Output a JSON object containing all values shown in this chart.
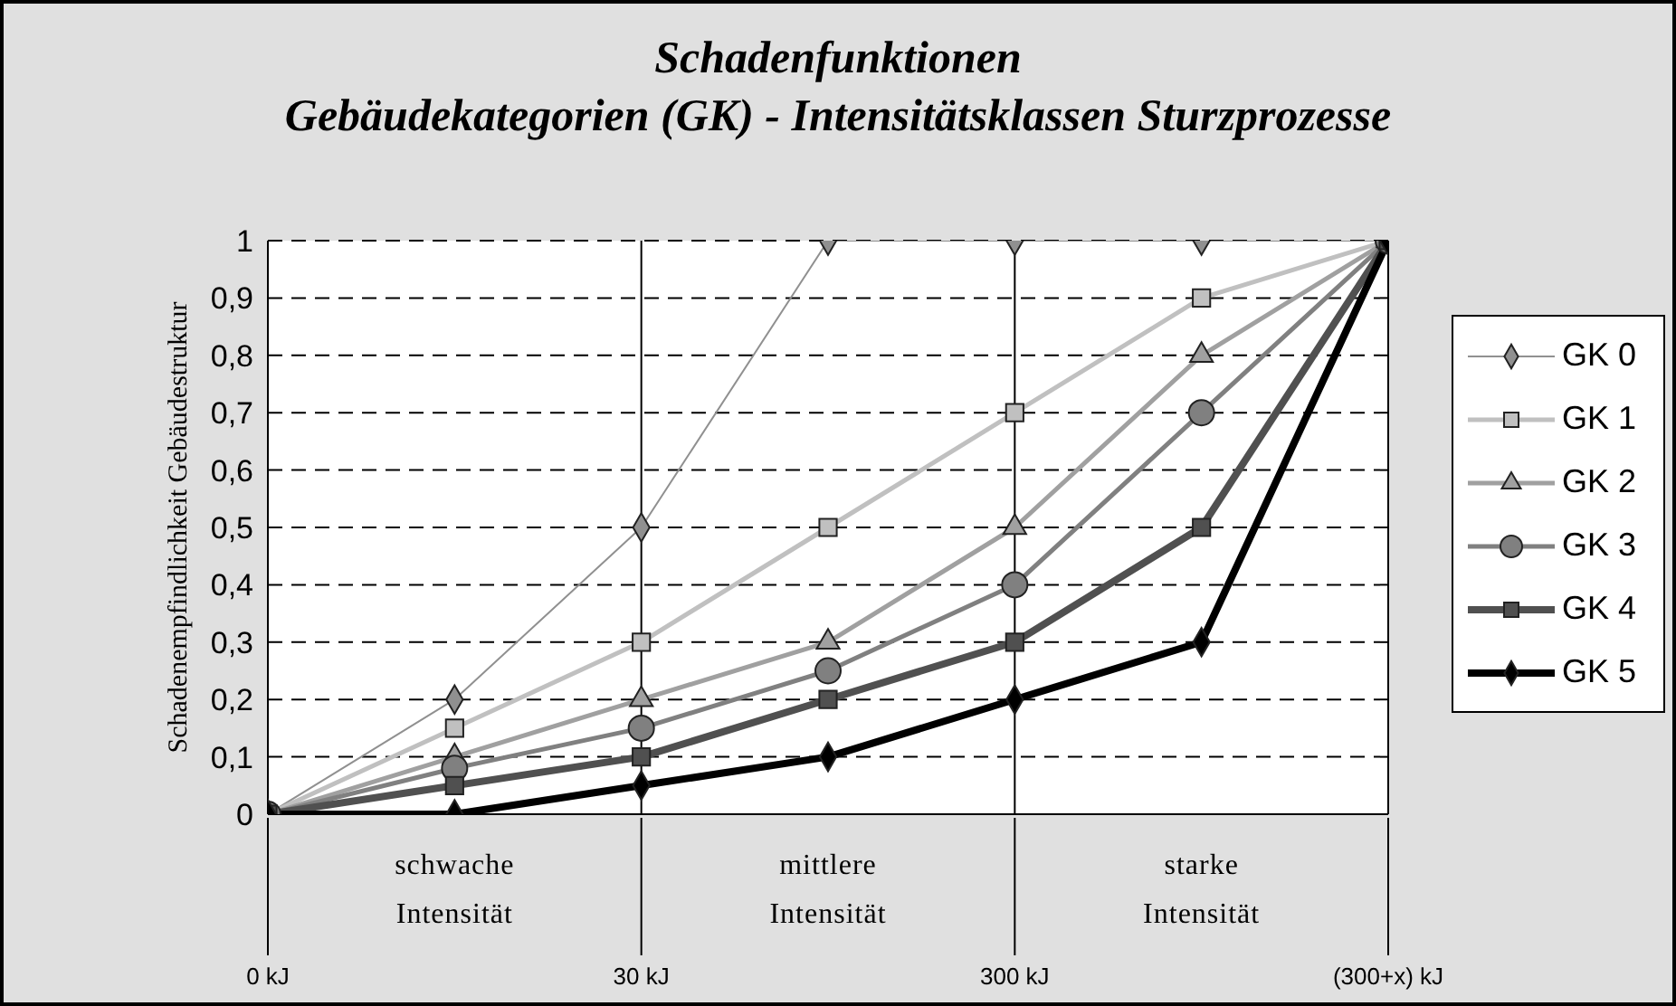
{
  "chart_data": {
    "type": "line",
    "title": "Schadenfunktionen",
    "subtitle": "Gebäudekategorien (GK) - Intensitätsklassen Sturzprozesse",
    "ylabel": "Schadenempfindlichkeit Gebäudestruktur",
    "categories": [
      "0 kJ",
      null,
      "30 kJ",
      null,
      "300 kJ",
      null,
      "(300+x) kJ"
    ],
    "ylim": [
      0,
      1
    ],
    "yticks": [
      {
        "value": 0,
        "label": "0"
      },
      {
        "value": 0.1,
        "label": "0,1"
      },
      {
        "value": 0.2,
        "label": "0,2"
      },
      {
        "value": 0.3,
        "label": "0,3"
      },
      {
        "value": 0.4,
        "label": "0,4"
      },
      {
        "value": 0.5,
        "label": "0,5"
      },
      {
        "value": 0.6,
        "label": "0,6"
      },
      {
        "value": 0.7,
        "label": "0,7"
      },
      {
        "value": 0.8,
        "label": "0,8"
      },
      {
        "value": 0.9,
        "label": "0,9"
      },
      {
        "value": 1,
        "label": "1"
      }
    ],
    "grid": true,
    "legend": "right",
    "annotations": [
      "schwache Intensität",
      "mittlere Intensität",
      "starke Intensität"
    ],
    "series": [
      {
        "name": "GK 0",
        "color": "#909090",
        "marker": "diamond",
        "values": [
          0,
          0.2,
          0.5,
          1,
          1,
          1,
          1
        ]
      },
      {
        "name": "GK 1",
        "color": "#c0c0c0",
        "marker": "square",
        "values": [
          0,
          0.15,
          0.3,
          0.5,
          0.7,
          0.9,
          1
        ]
      },
      {
        "name": "GK 2",
        "color": "#a0a0a0",
        "marker": "triangle",
        "values": [
          0,
          0.1,
          0.2,
          0.3,
          0.5,
          0.8,
          1
        ]
      },
      {
        "name": "GK 3",
        "color": "#808080",
        "marker": "circle",
        "values": [
          0,
          0.08,
          0.15,
          0.25,
          0.4,
          0.7,
          1
        ]
      },
      {
        "name": "GK 4",
        "color": "#505050",
        "marker": "square",
        "values": [
          0,
          0.05,
          0.1,
          0.2,
          0.3,
          0.5,
          1
        ]
      },
      {
        "name": "GK 5",
        "color": "#000000",
        "marker": "diamond",
        "values": [
          0,
          0,
          0.05,
          0.1,
          0.2,
          0.3,
          1
        ]
      }
    ]
  }
}
